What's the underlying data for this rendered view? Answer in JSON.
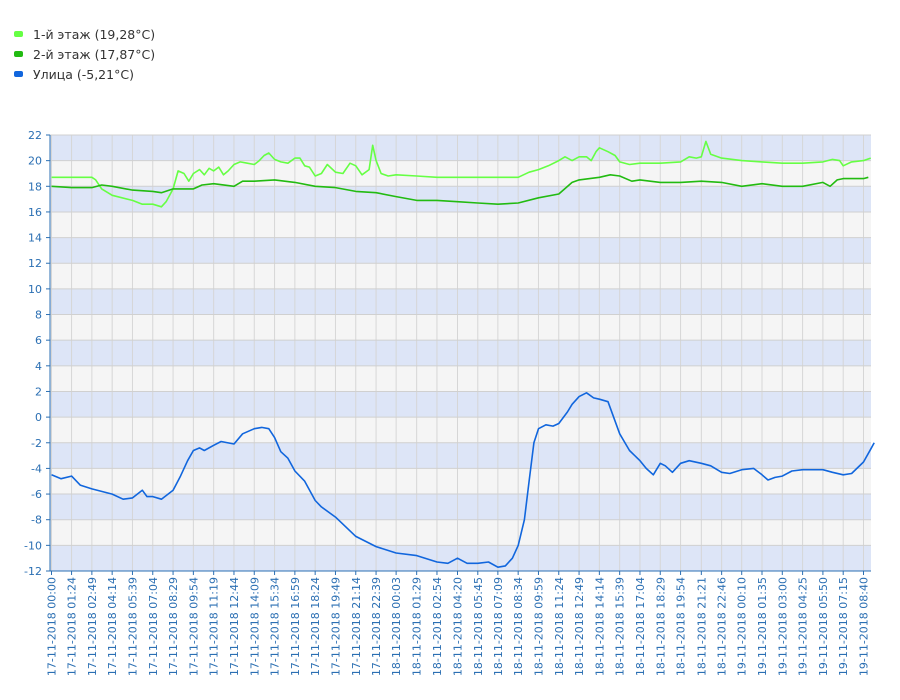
{
  "chart_data": {
    "type": "line",
    "title": "",
    "xlabel": "",
    "ylabel": "",
    "ylim": [
      -12,
      22
    ],
    "yticks": [
      -12,
      -10,
      -8,
      -6,
      -4,
      -2,
      0,
      2,
      4,
      6,
      8,
      10,
      12,
      14,
      16,
      18,
      20,
      22
    ],
    "x_ticks": [
      "17-11-2018 00:00",
      "17-11-2018 01:24",
      "17-11-2018 02:49",
      "17-11-2018 04:14",
      "17-11-2018 05:39",
      "17-11-2018 07:04",
      "17-11-2018 08:29",
      "17-11-2018 09:54",
      "17-11-2018 11:19",
      "17-11-2018 12:44",
      "17-11-2018 14:09",
      "17-11-2018 15:34",
      "17-11-2018 16:59",
      "17-11-2018 18:24",
      "17-11-2018 19:49",
      "17-11-2018 21:14",
      "17-11-2018 22:39",
      "18-11-2018 00:03",
      "18-11-2018 01:29",
      "18-11-2018 02:54",
      "18-11-2018 04:20",
      "18-11-2018 05:45",
      "18-11-2018 07:09",
      "18-11-2018 08:34",
      "18-11-2018 09:59",
      "18-11-2018 11:24",
      "18-11-2018 12:49",
      "18-11-2018 14:14",
      "18-11-2018 15:39",
      "18-11-2018 17:04",
      "18-11-2018 18:29",
      "18-11-2018 19:54",
      "18-11-2018 21:21",
      "18-11-2018 22:46",
      "19-11-2018 00:10",
      "19-11-2018 01:35",
      "19-11-2018 03:00",
      "19-11-2018 04:25",
      "19-11-2018 05:50",
      "19-11-2018 07:15",
      "19-11-2018 08:40"
    ],
    "grid": true,
    "legend_position": "top-left",
    "series": [
      {
        "name": "1-й этаж (19,28°C)",
        "color": "#66ff44",
        "points": [
          [
            "17-11-2018 00:00",
            18.7
          ],
          [
            "17-11-2018 02:49",
            18.7
          ],
          [
            "17-11-2018 03:05",
            18.5
          ],
          [
            "17-11-2018 03:30",
            17.8
          ],
          [
            "17-11-2018 04:14",
            17.3
          ],
          [
            "17-11-2018 05:39",
            16.9
          ],
          [
            "17-11-2018 06:20",
            16.6
          ],
          [
            "17-11-2018 07:04",
            16.6
          ],
          [
            "17-11-2018 07:40",
            16.4
          ],
          [
            "17-11-2018 08:00",
            16.8
          ],
          [
            "17-11-2018 08:29",
            17.8
          ],
          [
            "17-11-2018 08:50",
            19.2
          ],
          [
            "17-11-2018 09:15",
            19.0
          ],
          [
            "17-11-2018 09:35",
            18.4
          ],
          [
            "17-11-2018 09:54",
            19.0
          ],
          [
            "17-11-2018 10:20",
            19.3
          ],
          [
            "17-11-2018 10:40",
            18.9
          ],
          [
            "17-11-2018 11:00",
            19.4
          ],
          [
            "17-11-2018 11:19",
            19.2
          ],
          [
            "17-11-2018 11:40",
            19.5
          ],
          [
            "17-11-2018 12:00",
            18.9
          ],
          [
            "17-11-2018 12:20",
            19.2
          ],
          [
            "17-11-2018 12:44",
            19.7
          ],
          [
            "17-11-2018 13:10",
            19.9
          ],
          [
            "17-11-2018 13:40",
            19.8
          ],
          [
            "17-11-2018 14:09",
            19.7
          ],
          [
            "17-11-2018 14:30",
            20.0
          ],
          [
            "17-11-2018 14:50",
            20.4
          ],
          [
            "17-11-2018 15:10",
            20.6
          ],
          [
            "17-11-2018 15:34",
            20.1
          ],
          [
            "17-11-2018 16:00",
            19.9
          ],
          [
            "17-11-2018 16:30",
            19.8
          ],
          [
            "17-11-2018 16:59",
            20.2
          ],
          [
            "17-11-2018 17:20",
            20.2
          ],
          [
            "17-11-2018 17:40",
            19.6
          ],
          [
            "17-11-2018 18:00",
            19.5
          ],
          [
            "17-11-2018 18:24",
            18.8
          ],
          [
            "17-11-2018 18:50",
            19.0
          ],
          [
            "17-11-2018 19:15",
            19.7
          ],
          [
            "17-11-2018 19:49",
            19.1
          ],
          [
            "17-11-2018 20:20",
            19.0
          ],
          [
            "17-11-2018 20:50",
            19.8
          ],
          [
            "17-11-2018 21:14",
            19.6
          ],
          [
            "17-11-2018 21:40",
            18.9
          ],
          [
            "17-11-2018 22:10",
            19.3
          ],
          [
            "17-11-2018 22:25",
            21.2
          ],
          [
            "17-11-2018 22:39",
            20.0
          ],
          [
            "17-11-2018 23:00",
            19.0
          ],
          [
            "17-11-2018 23:30",
            18.8
          ],
          [
            "18-11-2018 00:03",
            18.9
          ],
          [
            "18-11-2018 01:29",
            18.8
          ],
          [
            "18-11-2018 02:54",
            18.7
          ],
          [
            "18-11-2018 04:20",
            18.7
          ],
          [
            "18-11-2018 05:45",
            18.7
          ],
          [
            "18-11-2018 07:09",
            18.7
          ],
          [
            "18-11-2018 08:34",
            18.7
          ],
          [
            "18-11-2018 09:20",
            19.1
          ],
          [
            "18-11-2018 09:59",
            19.3
          ],
          [
            "18-11-2018 10:40",
            19.6
          ],
          [
            "18-11-2018 11:24",
            20.0
          ],
          [
            "18-11-2018 11:50",
            20.3
          ],
          [
            "18-11-2018 12:20",
            20.0
          ],
          [
            "18-11-2018 12:49",
            20.3
          ],
          [
            "18-11-2018 13:20",
            20.3
          ],
          [
            "18-11-2018 13:40",
            20.0
          ],
          [
            "18-11-2018 14:00",
            20.7
          ],
          [
            "18-11-2018 14:14",
            21.0
          ],
          [
            "18-11-2018 14:50",
            20.7
          ],
          [
            "18-11-2018 15:20",
            20.4
          ],
          [
            "18-11-2018 15:39",
            19.9
          ],
          [
            "18-11-2018 16:20",
            19.7
          ],
          [
            "18-11-2018 17:04",
            19.8
          ],
          [
            "18-11-2018 18:29",
            19.8
          ],
          [
            "18-11-2018 19:54",
            19.9
          ],
          [
            "18-11-2018 20:30",
            20.3
          ],
          [
            "18-11-2018 21:00",
            20.2
          ],
          [
            "18-11-2018 21:21",
            20.3
          ],
          [
            "18-11-2018 21:40",
            21.5
          ],
          [
            "18-11-2018 22:00",
            20.5
          ],
          [
            "18-11-2018 22:46",
            20.2
          ],
          [
            "19-11-2018 00:10",
            20.0
          ],
          [
            "19-11-2018 01:35",
            19.9
          ],
          [
            "19-11-2018 03:00",
            19.8
          ],
          [
            "19-11-2018 04:25",
            19.8
          ],
          [
            "19-11-2018 05:50",
            19.9
          ],
          [
            "19-11-2018 06:30",
            20.1
          ],
          [
            "19-11-2018 07:00",
            20.0
          ],
          [
            "19-11-2018 07:15",
            19.6
          ],
          [
            "19-11-2018 07:50",
            19.9
          ],
          [
            "19-11-2018 08:40",
            20.0
          ],
          [
            "19-11-2018 09:10",
            20.2
          ]
        ]
      },
      {
        "name": "2-й этаж (17,87°C)",
        "color": "#22bb11",
        "points": [
          [
            "17-11-2018 00:00",
            18.0
          ],
          [
            "17-11-2018 01:24",
            17.9
          ],
          [
            "17-11-2018 02:49",
            17.9
          ],
          [
            "17-11-2018 03:30",
            18.1
          ],
          [
            "17-11-2018 04:14",
            18.0
          ],
          [
            "17-11-2018 05:39",
            17.7
          ],
          [
            "17-11-2018 07:04",
            17.6
          ],
          [
            "17-11-2018 07:40",
            17.5
          ],
          [
            "17-11-2018 08:29",
            17.8
          ],
          [
            "17-11-2018 09:54",
            17.8
          ],
          [
            "17-11-2018 10:30",
            18.1
          ],
          [
            "17-11-2018 11:19",
            18.2
          ],
          [
            "17-11-2018 12:44",
            18.0
          ],
          [
            "17-11-2018 13:20",
            18.4
          ],
          [
            "17-11-2018 14:09",
            18.4
          ],
          [
            "17-11-2018 15:34",
            18.5
          ],
          [
            "17-11-2018 16:59",
            18.3
          ],
          [
            "17-11-2018 18:24",
            18.0
          ],
          [
            "17-11-2018 19:49",
            17.9
          ],
          [
            "17-11-2018 21:14",
            17.6
          ],
          [
            "17-11-2018 22:39",
            17.5
          ],
          [
            "18-11-2018 00:03",
            17.2
          ],
          [
            "18-11-2018 01:29",
            16.9
          ],
          [
            "18-11-2018 02:54",
            16.9
          ],
          [
            "18-11-2018 04:20",
            16.8
          ],
          [
            "18-11-2018 05:45",
            16.7
          ],
          [
            "18-11-2018 07:09",
            16.6
          ],
          [
            "18-11-2018 08:34",
            16.7
          ],
          [
            "18-11-2018 09:59",
            17.1
          ],
          [
            "18-11-2018 11:24",
            17.4
          ],
          [
            "18-11-2018 12:20",
            18.3
          ],
          [
            "18-11-2018 12:49",
            18.5
          ],
          [
            "18-11-2018 14:14",
            18.7
          ],
          [
            "18-11-2018 15:00",
            18.9
          ],
          [
            "18-11-2018 15:39",
            18.8
          ],
          [
            "18-11-2018 16:30",
            18.4
          ],
          [
            "18-11-2018 17:04",
            18.5
          ],
          [
            "18-11-2018 18:29",
            18.3
          ],
          [
            "18-11-2018 19:54",
            18.3
          ],
          [
            "18-11-2018 21:21",
            18.4
          ],
          [
            "18-11-2018 22:46",
            18.3
          ],
          [
            "19-11-2018 00:10",
            18.0
          ],
          [
            "19-11-2018 01:35",
            18.2
          ],
          [
            "19-11-2018 03:00",
            18.0
          ],
          [
            "19-11-2018 04:25",
            18.0
          ],
          [
            "19-11-2018 05:50",
            18.3
          ],
          [
            "19-11-2018 06:20",
            18.0
          ],
          [
            "19-11-2018 06:50",
            18.5
          ],
          [
            "19-11-2018 07:15",
            18.6
          ],
          [
            "19-11-2018 08:40",
            18.6
          ],
          [
            "19-11-2018 09:00",
            18.7
          ]
        ]
      },
      {
        "name": "Улица (-5,21°C)",
        "color": "#1166dd",
        "points": [
          [
            "17-11-2018 00:00",
            -4.5
          ],
          [
            "17-11-2018 00:40",
            -4.8
          ],
          [
            "17-11-2018 01:24",
            -4.6
          ],
          [
            "17-11-2018 02:00",
            -5.3
          ],
          [
            "17-11-2018 02:49",
            -5.6
          ],
          [
            "17-11-2018 04:14",
            -6.0
          ],
          [
            "17-11-2018 05:00",
            -6.4
          ],
          [
            "17-11-2018 05:39",
            -6.3
          ],
          [
            "17-11-2018 06:20",
            -5.7
          ],
          [
            "17-11-2018 06:40",
            -6.2
          ],
          [
            "17-11-2018 07:04",
            -6.2
          ],
          [
            "17-11-2018 07:40",
            -6.4
          ],
          [
            "17-11-2018 08:29",
            -5.7
          ],
          [
            "17-11-2018 09:00",
            -4.6
          ],
          [
            "17-11-2018 09:30",
            -3.4
          ],
          [
            "17-11-2018 09:54",
            -2.6
          ],
          [
            "17-11-2018 10:20",
            -2.4
          ],
          [
            "17-11-2018 10:40",
            -2.6
          ],
          [
            "17-11-2018 11:19",
            -2.2
          ],
          [
            "17-11-2018 11:50",
            -1.9
          ],
          [
            "17-11-2018 12:44",
            -2.1
          ],
          [
            "17-11-2018 13:20",
            -1.3
          ],
          [
            "17-11-2018 14:09",
            -0.9
          ],
          [
            "17-11-2018 14:40",
            -0.8
          ],
          [
            "17-11-2018 15:10",
            -0.9
          ],
          [
            "17-11-2018 15:34",
            -1.6
          ],
          [
            "17-11-2018 16:00",
            -2.7
          ],
          [
            "17-11-2018 16:30",
            -3.2
          ],
          [
            "17-11-2018 16:59",
            -4.2
          ],
          [
            "17-11-2018 17:40",
            -5.0
          ],
          [
            "17-11-2018 18:24",
            -6.5
          ],
          [
            "17-11-2018 18:50",
            -7.0
          ],
          [
            "17-11-2018 19:49",
            -7.8
          ],
          [
            "17-11-2018 21:14",
            -9.3
          ],
          [
            "17-11-2018 22:39",
            -10.1
          ],
          [
            "18-11-2018 00:03",
            -10.6
          ],
          [
            "18-11-2018 01:29",
            -10.8
          ],
          [
            "18-11-2018 02:54",
            -11.3
          ],
          [
            "18-11-2018 03:40",
            -11.4
          ],
          [
            "18-11-2018 04:20",
            -11.0
          ],
          [
            "18-11-2018 05:00",
            -11.4
          ],
          [
            "18-11-2018 05:45",
            -11.4
          ],
          [
            "18-11-2018 06:30",
            -11.3
          ],
          [
            "18-11-2018 07:09",
            -11.7
          ],
          [
            "18-11-2018 07:40",
            -11.6
          ],
          [
            "18-11-2018 08:10",
            -11.0
          ],
          [
            "18-11-2018 08:34",
            -10.0
          ],
          [
            "18-11-2018 09:00",
            -8.0
          ],
          [
            "18-11-2018 09:20",
            -5.0
          ],
          [
            "18-11-2018 09:40",
            -2.0
          ],
          [
            "18-11-2018 09:59",
            -0.9
          ],
          [
            "18-11-2018 10:30",
            -0.6
          ],
          [
            "18-11-2018 11:00",
            -0.7
          ],
          [
            "18-11-2018 11:24",
            -0.5
          ],
          [
            "18-11-2018 12:00",
            0.4
          ],
          [
            "18-11-2018 12:20",
            1.0
          ],
          [
            "18-11-2018 12:49",
            1.6
          ],
          [
            "18-11-2018 13:20",
            1.9
          ],
          [
            "18-11-2018 13:50",
            1.5
          ],
          [
            "18-11-2018 14:14",
            1.4
          ],
          [
            "18-11-2018 14:50",
            1.2
          ],
          [
            "18-11-2018 15:39",
            -1.3
          ],
          [
            "18-11-2018 16:20",
            -2.6
          ],
          [
            "18-11-2018 17:04",
            -3.4
          ],
          [
            "18-11-2018 17:30",
            -4.0
          ],
          [
            "18-11-2018 18:00",
            -4.5
          ],
          [
            "18-11-2018 18:29",
            -3.6
          ],
          [
            "18-11-2018 18:50",
            -3.8
          ],
          [
            "18-11-2018 19:20",
            -4.3
          ],
          [
            "18-11-2018 19:54",
            -3.6
          ],
          [
            "18-11-2018 20:30",
            -3.4
          ],
          [
            "18-11-2018 21:21",
            -3.6
          ],
          [
            "18-11-2018 22:00",
            -3.8
          ],
          [
            "18-11-2018 22:46",
            -4.3
          ],
          [
            "18-11-2018 23:20",
            -4.4
          ],
          [
            "19-11-2018 00:10",
            -4.1
          ],
          [
            "19-11-2018 01:00",
            -4.0
          ],
          [
            "19-11-2018 01:35",
            -4.5
          ],
          [
            "19-11-2018 02:00",
            -4.9
          ],
          [
            "19-11-2018 02:30",
            -4.7
          ],
          [
            "19-11-2018 03:00",
            -4.6
          ],
          [
            "19-11-2018 03:40",
            -4.2
          ],
          [
            "19-11-2018 04:25",
            -4.1
          ],
          [
            "19-11-2018 05:00",
            -4.1
          ],
          [
            "19-11-2018 05:50",
            -4.1
          ],
          [
            "19-11-2018 06:30",
            -4.3
          ],
          [
            "19-11-2018 07:15",
            -4.5
          ],
          [
            "19-11-2018 07:50",
            -4.4
          ],
          [
            "19-11-2018 08:40",
            -3.5
          ],
          [
            "19-11-2018 09:10",
            -2.5
          ],
          [
            "19-11-2018 09:25",
            -2.0
          ]
        ]
      }
    ]
  }
}
